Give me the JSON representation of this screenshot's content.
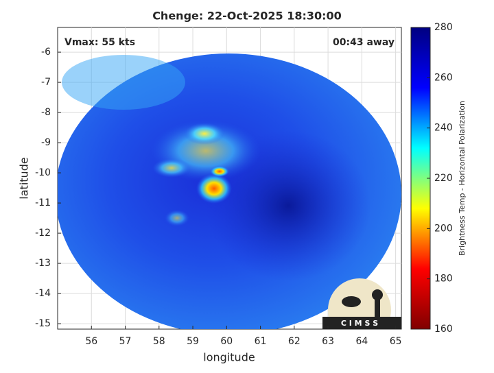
{
  "chart_data": {
    "type": "image",
    "title": "Chenge: 22-Oct-2025 18:30:00",
    "xlabel": "longitude",
    "ylabel": "latitude",
    "xlim": [
      55,
      65.17
    ],
    "xticks": [
      56,
      57,
      58,
      59,
      60,
      61,
      62,
      63,
      64,
      65
    ],
    "ylim": [
      -15.18,
      -5.18
    ],
    "yticks": [
      -15,
      -14,
      -13,
      -12,
      -11,
      -10,
      -9,
      -8,
      -7,
      -6
    ],
    "grid": true,
    "annotations": [
      "Vmax: 55 kts",
      "00:43 away"
    ],
    "logo": "C I M S S",
    "colorbar": {
      "label": "Brightness Temp - Horizontal Polarization",
      "lim": [
        160,
        280
      ],
      "ticks": [
        160,
        180,
        200,
        220,
        240,
        260,
        280
      ],
      "colors": [
        "#800000",
        "#ff0000",
        "#ffff00",
        "#00ffff",
        "#0000ff",
        "#000080"
      ]
    }
  }
}
